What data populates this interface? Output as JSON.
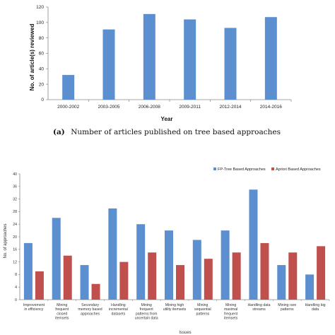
{
  "colors": {
    "blue": "#5b8fcf",
    "red": "#c0504d",
    "axis": "#888888",
    "grid": "#dddddd"
  },
  "caption": {
    "label": "(a)",
    "text": "Number of articles published on tree based approaches"
  },
  "chart_data": [
    {
      "type": "bar",
      "title": "",
      "xlabel": "Year",
      "ylabel": "No. of article(s) reviewed",
      "ylim": [
        0,
        120
      ],
      "yticks": [
        "0",
        "20",
        "40",
        "60",
        "80",
        "100",
        "120"
      ],
      "grid": false,
      "categories": [
        "2000-2002",
        "2003-2005",
        "2006-2008",
        "2009-2011",
        "2012-2014",
        "2014-2016"
      ],
      "values": [
        32,
        91,
        111,
        104,
        93,
        107
      ]
    },
    {
      "type": "bar",
      "title": "",
      "xlabel": "Issues",
      "ylabel": "No. of approaches",
      "ylim": [
        0,
        40
      ],
      "yticks": [
        "0",
        "4",
        "8",
        "12",
        "16",
        "20",
        "24",
        "28",
        "32",
        "36",
        "40"
      ],
      "grid": false,
      "legend": "top-right",
      "categories": [
        [
          "Improvement",
          "in efficiency"
        ],
        [
          "Mining",
          "frequent",
          "closed",
          "itemsets"
        ],
        [
          "Secondary",
          "memory based",
          "approaches"
        ],
        [
          "Handling",
          "incremental",
          "datasets"
        ],
        [
          "Mining",
          "frequent",
          "patterns from",
          "uncertain data"
        ],
        [
          "Mining high",
          "utility itemsets"
        ],
        [
          "Mining",
          "sequential",
          "patterns"
        ],
        [
          "Mining",
          "maximal",
          "frequent",
          "itemsets"
        ],
        [
          "Handling data",
          "streams"
        ],
        [
          "Mining rare",
          "patterns"
        ],
        [
          "Handling big",
          "data"
        ]
      ],
      "series": [
        {
          "name": "FP-Tree Based Approaches",
          "values": [
            18,
            26,
            11,
            29,
            24,
            22,
            19,
            22,
            35,
            11,
            8
          ]
        },
        {
          "name": "Apriori Based Approaches",
          "values": [
            9,
            14,
            5,
            12,
            15,
            11,
            13,
            15,
            18,
            15,
            17
          ]
        }
      ]
    }
  ]
}
